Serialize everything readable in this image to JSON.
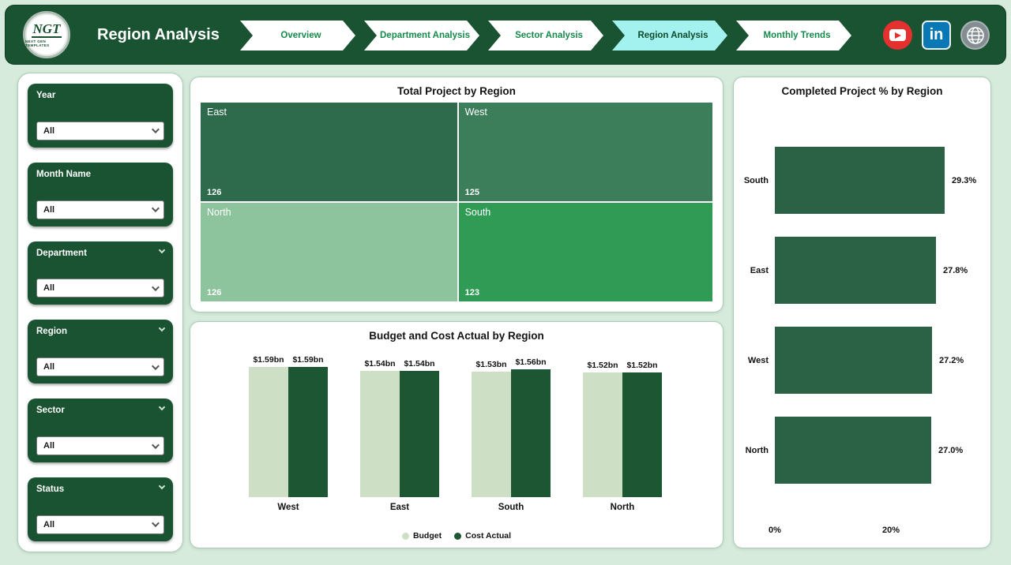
{
  "header": {
    "title": "Region Analysis",
    "logo": {
      "text": "NGT",
      "subtext": "NEXT GEN TEMPLATES"
    },
    "nav": [
      {
        "label": "Overview",
        "active": false
      },
      {
        "label": "Department Analysis",
        "active": false
      },
      {
        "label": "Sector Analysis",
        "active": false
      },
      {
        "label": "Region Analysis",
        "active": true
      },
      {
        "label": "Monthly Trends",
        "active": false
      }
    ],
    "social": {
      "icons": [
        "youtube-icon",
        "linkedin-icon",
        "globe-icon"
      ],
      "linkedin_text": "in",
      "youtube_color": "#e53030",
      "linkedin_color": "#0a78b5"
    },
    "accent_active": "#a4f2f0",
    "brand_green": "#1a5331"
  },
  "filters": [
    {
      "label": "Year",
      "value": "All",
      "collapsible": false
    },
    {
      "label": "Month Name",
      "value": "All",
      "collapsible": false
    },
    {
      "label": "Department",
      "value": "All",
      "collapsible": true
    },
    {
      "label": "Region",
      "value": "All",
      "collapsible": true
    },
    {
      "label": "Sector",
      "value": "All",
      "collapsible": true
    },
    {
      "label": "Status",
      "value": "All",
      "collapsible": true
    }
  ],
  "chart_data": [
    {
      "type": "heatmap",
      "subtype": "treemap",
      "title": "Total Project by Region",
      "cells": [
        {
          "label": "East",
          "value": 126,
          "color": "#2e6b4c"
        },
        {
          "label": "West",
          "value": 125,
          "color": "#3c7d5a"
        },
        {
          "label": "North",
          "value": 126,
          "color": "#8ec49d"
        },
        {
          "label": "South",
          "value": 123,
          "color": "#2f9b55"
        }
      ]
    },
    {
      "type": "bar",
      "title": "Budget and Cost Actual by Region",
      "categories": [
        "West",
        "East",
        "South",
        "North"
      ],
      "series": [
        {
          "name": "Budget",
          "color": "#cde0c6",
          "values": [
            1.59,
            1.54,
            1.53,
            1.52
          ],
          "labels": [
            "$1.59bn",
            "$1.54bn",
            "$1.53bn",
            "$1.52bn"
          ]
        },
        {
          "name": "Cost Actual",
          "color": "#1c5632",
          "values": [
            1.59,
            1.54,
            1.56,
            1.52
          ],
          "labels": [
            "$1.59bn",
            "$1.54bn",
            "$1.56bn",
            "$1.52bn"
          ]
        }
      ],
      "ylim": [
        0,
        1.59
      ],
      "legend_position": "bottom",
      "grid": false
    },
    {
      "type": "bar",
      "subtype": "horizontal",
      "title": "Completed Project % by Region",
      "categories": [
        "South",
        "East",
        "West",
        "North"
      ],
      "values": [
        29.3,
        27.8,
        27.2,
        27.0
      ],
      "labels": [
        "29.3%",
        "27.8%",
        "27.2%",
        "27.0%"
      ],
      "bar_color": "#2b6144",
      "x_ticks": [
        "0%",
        "20%"
      ],
      "xlim": [
        0,
        32
      ],
      "grid": false
    }
  ]
}
